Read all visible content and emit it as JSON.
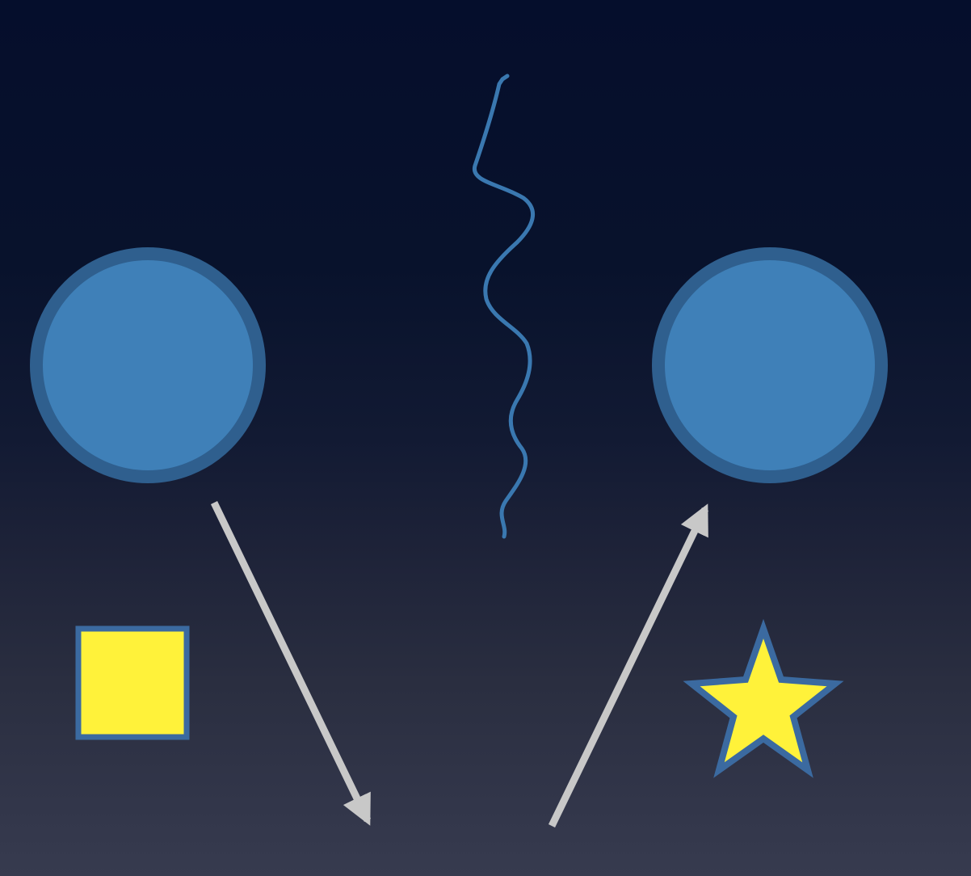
{
  "colors": {
    "background_top": "#050e2c",
    "background_bottom": "#373b4f",
    "particle_fill": "#3f80b8",
    "particle_stroke": "#2f5f8e",
    "wave_stroke": "#3a78b0",
    "arrow": "#c8c8c8",
    "shape_fill": "#fff23a",
    "shape_stroke": "#3b6aa0"
  },
  "elements": {
    "left_particle": "circle",
    "right_particle": "circle",
    "wave": "wavy-line",
    "left_arrow": "arrow-down-right",
    "right_arrow": "arrow-up-right",
    "square": "square",
    "star": "star"
  }
}
